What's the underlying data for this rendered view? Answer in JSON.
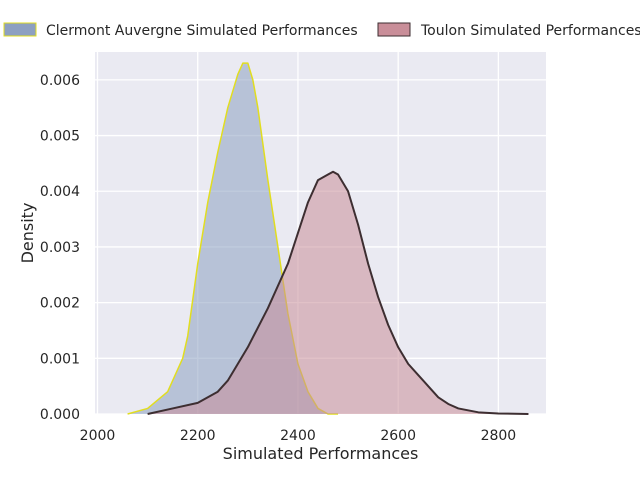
{
  "chart_data": {
    "type": "area",
    "title": "",
    "xlabel": "Simulated Performances",
    "ylabel": "Density",
    "xlim": [
      1995,
      2895
    ],
    "ylim": [
      0,
      0.0065
    ],
    "x_ticks": [
      2000,
      2200,
      2400,
      2600,
      2800
    ],
    "y_ticks": [
      0.0,
      0.001,
      0.002,
      0.003,
      0.004,
      0.005,
      0.006
    ],
    "y_tick_labels": [
      "0.000",
      "0.001",
      "0.002",
      "0.003",
      "0.004",
      "0.005",
      "0.006"
    ],
    "grid": true,
    "legend": "top, horizontal, above plot",
    "plot_bg": "#eaeaf2",
    "series": [
      {
        "name": "Clermont Auvergne Simulated Performances",
        "fill": "#8da0c1",
        "line": "#e1dd20",
        "x": [
          2060,
          2100,
          2140,
          2170,
          2180,
          2200,
          2220,
          2240,
          2260,
          2280,
          2290,
          2300,
          2310,
          2320,
          2340,
          2360,
          2380,
          2400,
          2420,
          2440,
          2460,
          2480
        ],
        "y": [
          0.0,
          0.0001,
          0.0004,
          0.001,
          0.0014,
          0.0027,
          0.0038,
          0.0047,
          0.0055,
          0.0061,
          0.0063,
          0.0063,
          0.006,
          0.0055,
          0.0042,
          0.003,
          0.0018,
          0.0009,
          0.0004,
          0.0001,
          0.0,
          0.0
        ]
      },
      {
        "name": "Toulon Simulated Performances",
        "fill": "#c98e99",
        "line": "#3d2e31",
        "x": [
          2100,
          2150,
          2200,
          2240,
          2260,
          2300,
          2340,
          2380,
          2420,
          2440,
          2460,
          2470,
          2480,
          2500,
          2520,
          2540,
          2560,
          2580,
          2600,
          2620,
          2640,
          2660,
          2680,
          2700,
          2720,
          2760,
          2800,
          2860
        ],
        "y": [
          0.0,
          0.0001,
          0.0002,
          0.0004,
          0.0006,
          0.0012,
          0.0019,
          0.0027,
          0.0038,
          0.0042,
          0.0043,
          0.00435,
          0.0043,
          0.004,
          0.0034,
          0.0027,
          0.0021,
          0.0016,
          0.0012,
          0.0009,
          0.0007,
          0.0005,
          0.0003,
          0.00018,
          0.0001,
          3e-05,
          1e-05,
          0.0
        ]
      }
    ]
  }
}
